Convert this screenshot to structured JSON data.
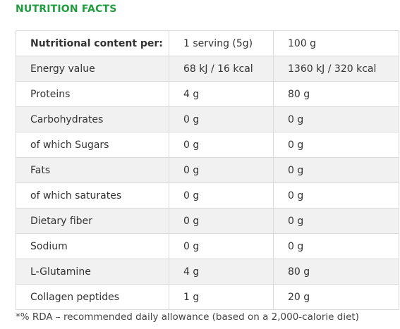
{
  "title": "NUTRITION FACTS",
  "table": {
    "header": {
      "label": "Nutritional content per:",
      "col1": "1 serving (5g)",
      "col2": "100 g"
    },
    "rows": [
      {
        "label": "Energy value",
        "col1": "68 kJ / 16 kcal",
        "col2": "1360 kJ / 320 kcal"
      },
      {
        "label": "Proteins",
        "col1": "4 g",
        "col2": "80 g"
      },
      {
        "label": "Carbohydrates",
        "col1": "0 g",
        "col2": "0 g"
      },
      {
        "label": "of which Sugars",
        "col1": "0 g",
        "col2": "0 g"
      },
      {
        "label": "Fats",
        "col1": "0 g",
        "col2": "0 g"
      },
      {
        "label": "of which saturates",
        "col1": "0 g",
        "col2": "0 g"
      },
      {
        "label": "Dietary fiber",
        "col1": "0 g",
        "col2": "0 g"
      },
      {
        "label": "Sodium",
        "col1": "0 g",
        "col2": "0 g"
      },
      {
        "label": "L-Glutamine",
        "col1": "4 g",
        "col2": "80 g"
      },
      {
        "label": "Collagen peptides",
        "col1": "1 g",
        "col2": "20 g"
      }
    ]
  },
  "footnote": "*% RDA – recommended daily allowance (based on a 2,000-calorie diet)",
  "colors": {
    "title": "#1f9d3f",
    "border": "#d9d9d9",
    "stripe": "#f1f1f1"
  }
}
